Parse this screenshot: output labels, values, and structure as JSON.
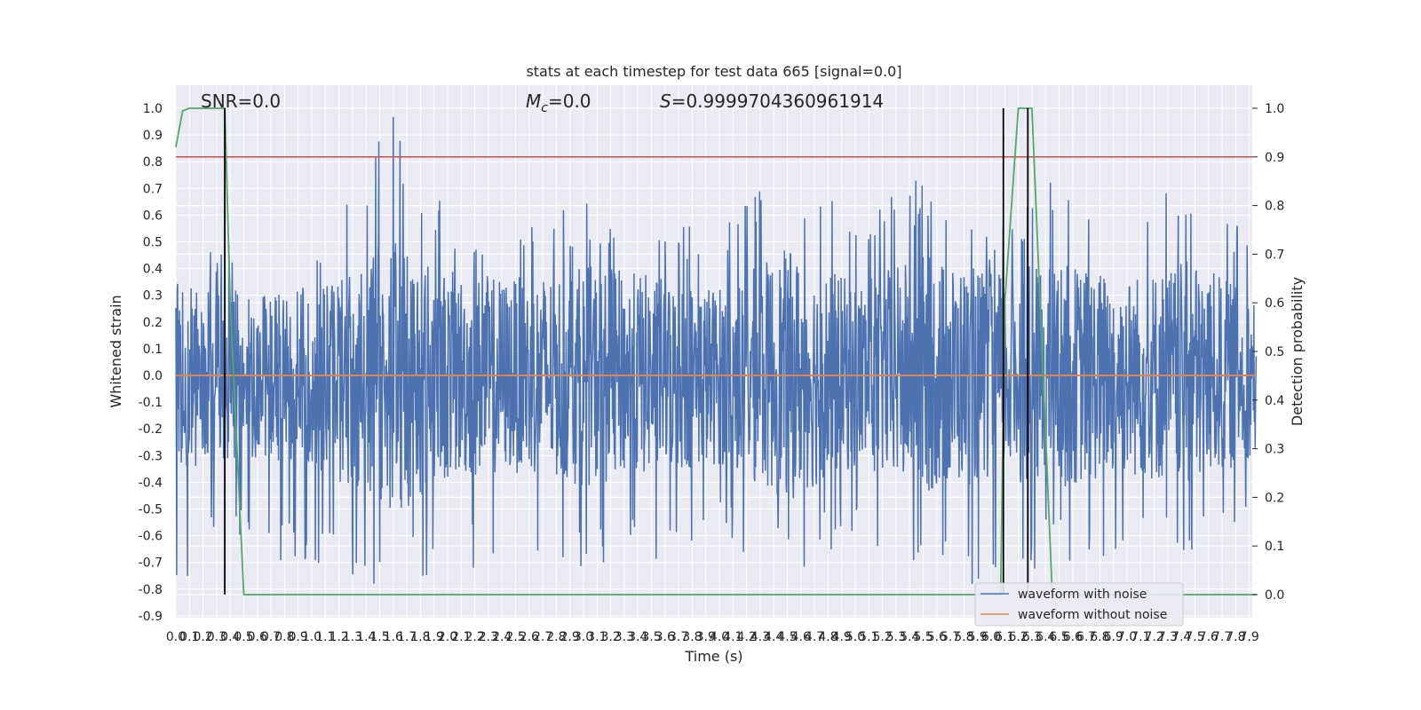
{
  "chart_data": {
    "type": "line",
    "title": "stats at each timestep for test data 665 [signal=0.0]",
    "xlabel": "Time (s)",
    "ylabel": "Whitened strain",
    "y2label": "Detection probability",
    "xlim": [
      0.0,
      7.95
    ],
    "ylim": [
      -0.9,
      1.05
    ],
    "y2lim": [
      0.0,
      1.0
    ],
    "x_ticks": [
      0.0,
      0.1,
      0.2,
      0.3,
      0.4,
      0.5,
      0.6,
      0.7,
      0.8,
      0.9,
      1.0,
      1.1,
      1.2,
      1.3,
      1.4,
      1.5,
      1.6,
      1.7,
      1.8,
      1.9,
      2.0,
      2.1,
      2.2,
      2.3,
      2.4,
      2.5,
      2.6,
      2.7,
      2.8,
      2.9,
      3.0,
      3.1,
      3.2,
      3.3,
      3.4,
      3.5,
      3.6,
      3.7,
      3.8,
      3.9,
      4.0,
      4.1,
      4.2,
      4.3,
      4.4,
      4.5,
      4.6,
      4.7,
      4.8,
      4.9,
      5.0,
      5.1,
      5.2,
      5.3,
      5.4,
      5.5,
      5.6,
      5.7,
      5.8,
      5.9,
      6.0,
      6.1,
      6.2,
      6.3,
      6.4,
      6.5,
      6.6,
      6.7,
      6.8,
      6.9,
      7.0,
      7.1,
      7.2,
      7.3,
      7.4,
      7.5,
      7.6,
      7.7,
      7.8,
      7.9
    ],
    "y_ticks": [
      -0.9,
      -0.8,
      -0.7,
      -0.6,
      -0.5,
      -0.4,
      -0.3,
      -0.2,
      -0.1,
      0.0,
      0.1,
      0.2,
      0.3,
      0.4,
      0.5,
      0.6,
      0.7,
      0.8,
      0.9,
      1.0
    ],
    "y2_ticks": [
      0.0,
      0.1,
      0.2,
      0.3,
      0.4,
      0.5,
      0.6,
      0.7,
      0.8,
      0.9,
      1.0
    ],
    "grid": true,
    "legend_position": "bottom-right",
    "annotations": {
      "snr": "SNR=0.0",
      "mc_symbol": "M",
      "mc_subscript": "c",
      "mc_value": "=0.0",
      "s_symbol": "S",
      "s_value": "=0.9999704360961914"
    },
    "series": [
      {
        "name": "waveform with noise",
        "color": "#4c72b0",
        "envelope": {
          "x": [
            0.0,
            0.4,
            0.6,
            1.0,
            1.6,
            2.0,
            2.5,
            3.0,
            3.5,
            4.0,
            4.5,
            5.0,
            5.5,
            6.0,
            6.5,
            7.0,
            7.5,
            7.95
          ],
          "upper": [
            0.45,
            0.5,
            0.3,
            0.45,
            1.0,
            0.6,
            0.55,
            0.65,
            0.6,
            0.55,
            0.84,
            0.6,
            0.75,
            0.55,
            0.75,
            0.6,
            0.78,
            0.5
          ],
          "lower": [
            -0.8,
            -0.6,
            -0.75,
            -0.7,
            -0.82,
            -0.75,
            -0.7,
            -0.77,
            -0.7,
            -0.6,
            -0.78,
            -0.6,
            -0.8,
            -0.78,
            -0.7,
            -0.7,
            -0.7,
            -0.5
          ]
        }
      },
      {
        "name": "waveform without noise",
        "color": "#dd8452",
        "x": [
          0.0,
          7.95
        ],
        "y": [
          0.0,
          0.0
        ]
      },
      {
        "name": "",
        "axis": "right",
        "color": "#55a868",
        "x": [
          0.0,
          0.05,
          0.1,
          0.2,
          0.3,
          0.36,
          0.4,
          0.5,
          6.0,
          6.07,
          6.1,
          6.2,
          6.3,
          6.45,
          7.7,
          7.95
        ],
        "y": [
          0.92,
          0.995,
          1.0,
          1.0,
          1.0,
          1.0,
          0.6,
          0.0,
          0.0,
          0.0,
          0.6,
          1.0,
          1.0,
          0.0,
          0.0,
          0.0
        ]
      }
    ],
    "threshold": {
      "axis": "right",
      "value": 0.9,
      "color": "#c44e52"
    },
    "vertical_markers": [
      {
        "x": 0.36,
        "y_from": -0.82,
        "y_to": 1.0,
        "color": "#000000"
      },
      {
        "x": 6.09,
        "y_from": -0.82,
        "y_to": 1.0,
        "color": "#000000"
      },
      {
        "x": 6.27,
        "y_from": -0.82,
        "y_to": 1.0,
        "color": "#000000"
      }
    ]
  }
}
